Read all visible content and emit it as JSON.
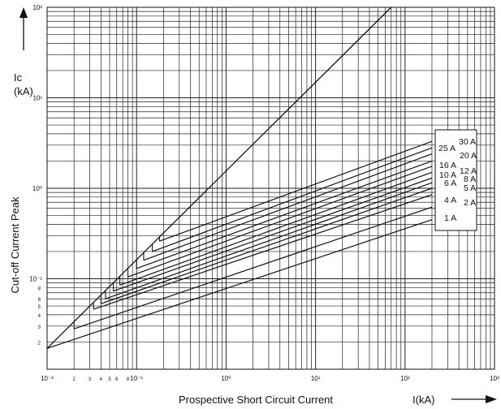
{
  "chart_data": {
    "type": "line",
    "title": "",
    "ylabel_symbol": "Ic",
    "ylabel_unit": "(kA)",
    "ylabel": "Cut-off Current Peak",
    "xlabel": "Prospective Short Circuit Current",
    "xlabel_unit": "I(kA)",
    "x_scale": "log",
    "y_scale": "log",
    "xlim": [
      0.01,
      1000
    ],
    "ylim": [
      0.01,
      100
    ],
    "grid": true,
    "x_ticks": [
      {
        "value": 0.01,
        "label": "10⁻²"
      },
      {
        "value": 0.02,
        "label": "2"
      },
      {
        "value": 0.03,
        "label": "3"
      },
      {
        "value": 0.04,
        "label": "4"
      },
      {
        "value": 0.05,
        "label": "5"
      },
      {
        "value": 0.06,
        "label": "6"
      },
      {
        "value": 0.08,
        "label": "8"
      },
      {
        "value": 0.1,
        "label": "10⁻¹"
      },
      {
        "value": 1,
        "label": "10⁰"
      },
      {
        "value": 10,
        "label": "10¹"
      },
      {
        "value": 100,
        "label": "10²"
      },
      {
        "value": 1000,
        "label": "10³"
      }
    ],
    "y_ticks": [
      {
        "value": 0.02,
        "label": "2"
      },
      {
        "value": 0.03,
        "label": "3"
      },
      {
        "value": 0.04,
        "label": "4"
      },
      {
        "value": 0.05,
        "label": "5"
      },
      {
        "value": 0.06,
        "label": "6"
      },
      {
        "value": 0.08,
        "label": "8"
      },
      {
        "value": 0.1,
        "label": "10⁻¹"
      },
      {
        "value": 1,
        "label": "10⁰"
      },
      {
        "value": 10,
        "label": "10¹"
      },
      {
        "value": 100,
        "label": "10²"
      }
    ],
    "reference_line": {
      "x": [
        0.01,
        70
      ],
      "y": [
        0.017,
        100
      ]
    },
    "series": [
      {
        "name": "30 A",
        "x": [
          0.18,
          200
        ],
        "y": [
          0.26,
          3.3
        ]
      },
      {
        "name": "25 A",
        "x": [
          0.15,
          200
        ],
        "y": [
          0.2,
          2.8
        ]
      },
      {
        "name": "20 A",
        "x": [
          0.12,
          200
        ],
        "y": [
          0.16,
          2.4
        ]
      },
      {
        "name": "16 A",
        "x": [
          0.1,
          200
        ],
        "y": [
          0.13,
          2.0
        ]
      },
      {
        "name": "12 A",
        "x": [
          0.08,
          200
        ],
        "y": [
          0.105,
          1.75
        ]
      },
      {
        "name": "10 A",
        "x": [
          0.065,
          200
        ],
        "y": [
          0.085,
          1.5
        ]
      },
      {
        "name": "8 A",
        "x": [
          0.055,
          200
        ],
        "y": [
          0.073,
          1.3
        ]
      },
      {
        "name": "6 A",
        "x": [
          0.045,
          200
        ],
        "y": [
          0.06,
          1.15
        ]
      },
      {
        "name": "5 A",
        "x": [
          0.04,
          200
        ],
        "y": [
          0.053,
          1.0
        ]
      },
      {
        "name": "4 A",
        "x": [
          0.033,
          200
        ],
        "y": [
          0.046,
          0.85
        ]
      },
      {
        "name": "2 A",
        "x": [
          0.02,
          200
        ],
        "y": [
          0.028,
          0.62
        ]
      },
      {
        "name": "1 A",
        "x": [
          0.01,
          200
        ],
        "y": [
          0.017,
          0.45
        ]
      }
    ]
  }
}
